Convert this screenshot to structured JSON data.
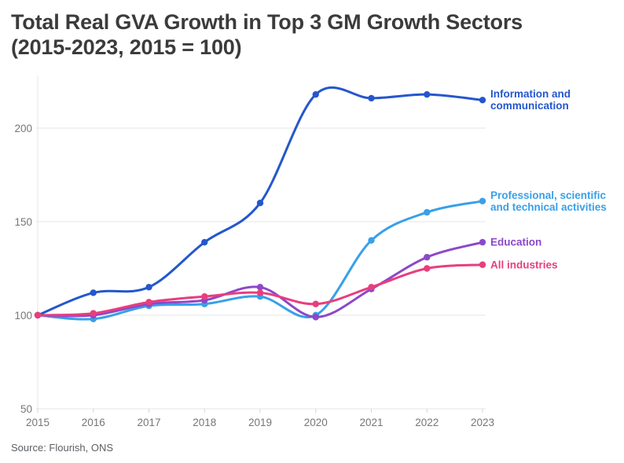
{
  "title": {
    "line1": "Total Real GVA Growth in Top 3 GM Growth Sectors",
    "line2": "(2015-2023, 2015 = 100)"
  },
  "source": "Source: Flourish, ONS",
  "colors": {
    "title_text": "#3b3b3b",
    "axis_text": "#767676",
    "grid": "#e4e4e4",
    "source_text": "#5b6064",
    "background": "#ffffff"
  },
  "chart_data": {
    "type": "line",
    "title": "Total Real GVA Growth in Top 3 GM Growth Sectors (2015-2023, 2015 = 100)",
    "xlabel": "",
    "ylabel": "",
    "x": [
      2015,
      2016,
      2017,
      2018,
      2019,
      2020,
      2021,
      2022,
      2023
    ],
    "series": [
      {
        "name": "Information and communication",
        "label_lines": [
          "Information and",
          "communication"
        ],
        "color": "#2457cd",
        "values": [
          100,
          112,
          115,
          139,
          160,
          218,
          216,
          218,
          215
        ]
      },
      {
        "name": "Professional, scientific and technical activities",
        "label_lines": [
          "Professional, scientific",
          "and technical activities"
        ],
        "color": "#38a0e9",
        "values": [
          100,
          98,
          105,
          106,
          110,
          100,
          140,
          155,
          161
        ]
      },
      {
        "name": "Education",
        "label_lines": [
          "Education"
        ],
        "color": "#8c48c9",
        "values": [
          100,
          100,
          106,
          108,
          115,
          99,
          114,
          131,
          139
        ]
      },
      {
        "name": "All industries",
        "label_lines": [
          "All industries"
        ],
        "color": "#e83e7e",
        "values": [
          100,
          101,
          107,
          110,
          112,
          106,
          115,
          125,
          127
        ]
      }
    ],
    "yticks": [
      50,
      100,
      150,
      200
    ],
    "ylim": [
      50,
      228
    ],
    "grid": "horizontal",
    "legend_position": "labels-at-line-ends"
  }
}
